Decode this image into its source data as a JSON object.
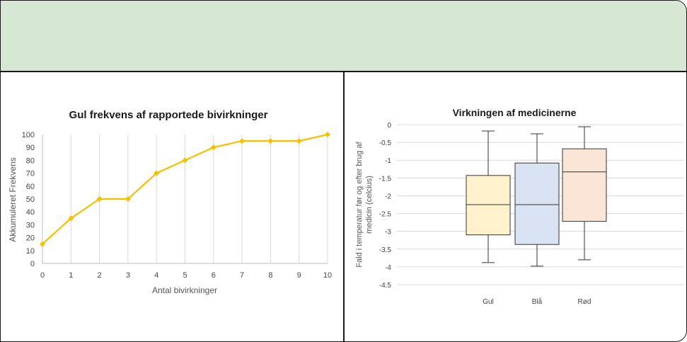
{
  "chart_data": [
    {
      "type": "line",
      "title": "Gul frekvens af rapportede bivirkninger",
      "xlabel": "Antal bivirkninger",
      "ylabel": "Akkumuleret Frekvens",
      "x": [
        0,
        1,
        2,
        3,
        4,
        5,
        6,
        7,
        8,
        9,
        10
      ],
      "xticks": [
        "0",
        "1",
        "2",
        "3",
        "4",
        "5",
        "6",
        "7",
        "8",
        "9",
        "10"
      ],
      "yticks": [
        "0",
        "10",
        "20",
        "30",
        "40",
        "50",
        "60",
        "70",
        "80",
        "90",
        "100"
      ],
      "series": [
        {
          "values": [
            15,
            35,
            50,
            50,
            70,
            80,
            90,
            95,
            95,
            95,
            100
          ],
          "color": "#f5c000"
        }
      ],
      "xlim": [
        0,
        10
      ],
      "ylim": [
        0,
        100
      ],
      "grid": "vertical"
    },
    {
      "type": "box",
      "title": "Virkningen af medicinerne",
      "ylabel": "Fald i temperatur før og efter brug af medicin (celcius)",
      "categories": [
        "Gul",
        "Blå",
        "Rød"
      ],
      "yticks": [
        "0",
        "-0.5",
        "-1",
        "-1.5",
        "-2",
        "-2.5",
        "-3",
        "-3.5",
        "-4",
        "-4.5"
      ],
      "ylim": [
        -4.5,
        0
      ],
      "grid": "horizontal",
      "boxes": [
        {
          "name": "Gul",
          "min": -3.88,
          "q1": -3.1,
          "median": -2.25,
          "q3": -1.43,
          "max": -0.18,
          "fill": "#fff2cc"
        },
        {
          "name": "Blå",
          "min": -3.98,
          "q1": -3.37,
          "median": -2.25,
          "q3": -1.08,
          "max": -0.26,
          "fill": "#dae3f3"
        },
        {
          "name": "Rød",
          "min": -3.8,
          "q1": -2.72,
          "median": -1.33,
          "q3": -0.68,
          "max": -0.06,
          "fill": "#fbe5d6"
        }
      ]
    }
  ]
}
